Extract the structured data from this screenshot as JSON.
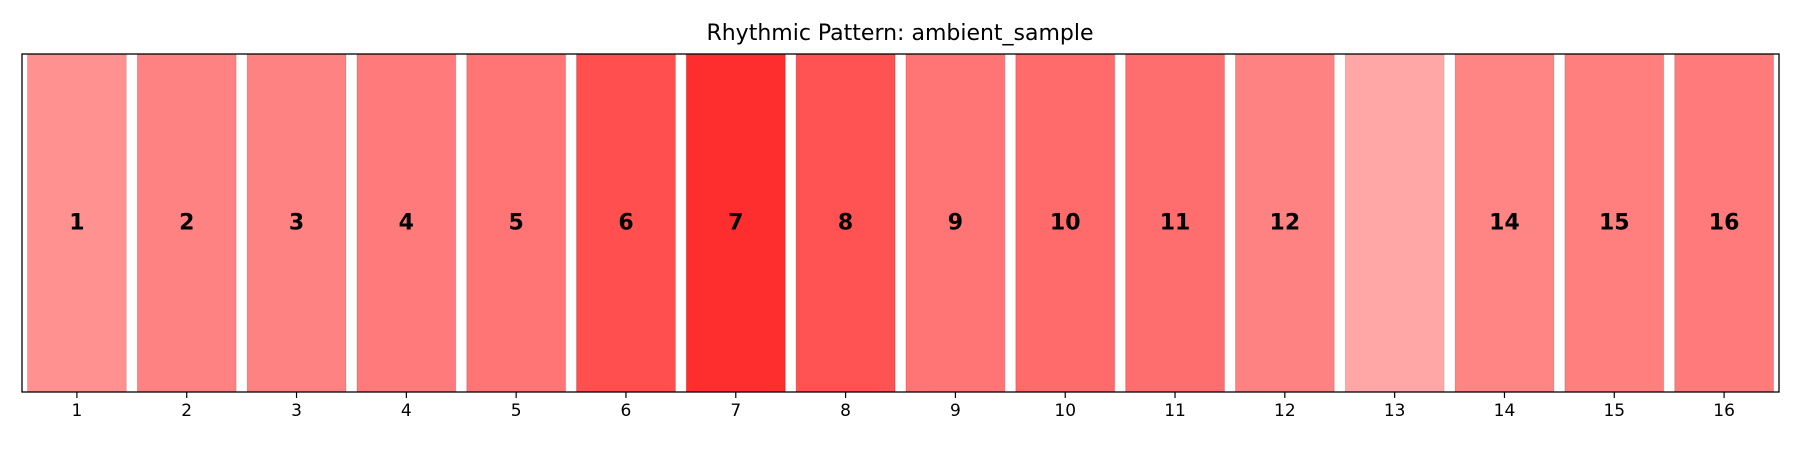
{
  "chart_data": {
    "type": "bar",
    "title": "Rhythmic Pattern: ambient_sample",
    "xlabel": "",
    "ylabel": "",
    "categories": [
      "1",
      "2",
      "3",
      "4",
      "5",
      "6",
      "7",
      "8",
      "9",
      "10",
      "11",
      "12",
      "13",
      "14",
      "15",
      "16"
    ],
    "bar_labels": [
      "1",
      "2",
      "3",
      "4",
      "5",
      "6",
      "7",
      "8",
      "9",
      "10",
      "11",
      "12",
      "",
      "14",
      "15",
      "16"
    ],
    "intensity": [
      0.43,
      0.49,
      0.49,
      0.52,
      0.54,
      0.69,
      0.82,
      0.68,
      0.54,
      0.58,
      0.57,
      0.49,
      0.35,
      0.48,
      0.5,
      0.52
    ],
    "ylim": [
      0,
      1
    ],
    "grid": false,
    "legend": "none",
    "bar_color": "#ff0000",
    "bar_edge_color": "#8b0000"
  }
}
